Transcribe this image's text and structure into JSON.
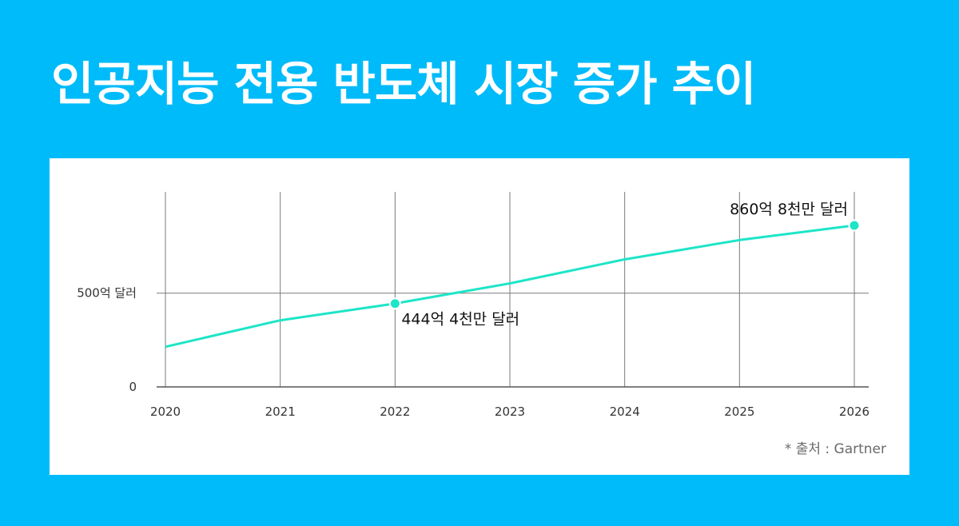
{
  "title": "인공지능 전용 반도체 시장 증가 추이",
  "source": "* 출처 : Gartner",
  "colors": {
    "background": "#00bbf9",
    "card": "#ffffff",
    "line": "#1de5c7",
    "grid": "#7a7a7a"
  },
  "chart_data": {
    "type": "line",
    "x": [
      "2020",
      "2021",
      "2022",
      "2023",
      "2024",
      "2025",
      "2026"
    ],
    "series": [
      {
        "values": [
          214,
          355,
          444.4,
          552,
          680,
          783,
          860.8
        ]
      }
    ],
    "y_ticks": [
      {
        "value": 0,
        "label": "0"
      },
      {
        "value": 500,
        "label": "500억 달러"
      }
    ],
    "ylim": [
      0,
      1040
    ],
    "annotations": [
      {
        "x": "2022",
        "value": 444.4,
        "label": "444억 4천만 달러",
        "position": "below-right"
      },
      {
        "x": "2026",
        "value": 860.8,
        "label": "860억 8천만 달러",
        "position": "above-left"
      }
    ],
    "grid": {
      "vertical": true,
      "horizontal_at_ticks": true
    },
    "xlabel": "",
    "ylabel": ""
  }
}
